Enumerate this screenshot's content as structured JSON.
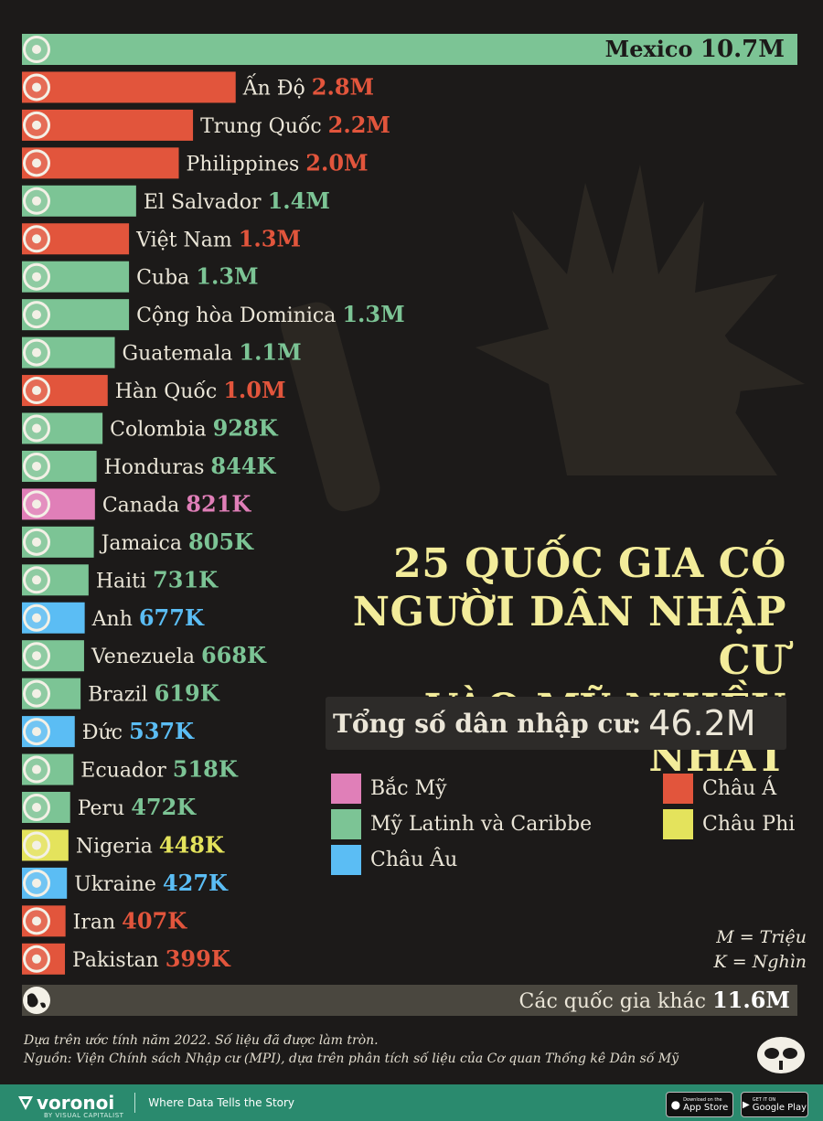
{
  "chart_data": {
    "type": "bar",
    "orientation": "horizontal",
    "categories": [
      "Mexico",
      "Ấn Độ",
      "Trung Quốc",
      "Philippines",
      "El Salvador",
      "Việt Nam",
      "Cuba",
      "Cộng hòa Dominica",
      "Guatemala",
      "Hàn Quốc",
      "Colombia",
      "Honduras",
      "Canada",
      "Jamaica",
      "Haiti",
      "Anh",
      "Venezuela",
      "Brazil",
      "Đức",
      "Ecuador",
      "Peru",
      "Nigeria",
      "Ukraine",
      "Iran",
      "Pakistan"
    ],
    "values": [
      10700000,
      2800000,
      2200000,
      2000000,
      1400000,
      1300000,
      1300000,
      1300000,
      1100000,
      1000000,
      928000,
      844000,
      821000,
      805000,
      731000,
      677000,
      668000,
      619000,
      537000,
      518000,
      472000,
      448000,
      427000,
      407000,
      399000
    ],
    "value_labels": [
      "10.7M",
      "2.8M",
      "2.2M",
      "2.0M",
      "1.4M",
      "1.3M",
      "1.3M",
      "1.3M",
      "1.1M",
      "1.0M",
      "928K",
      "844K",
      "821K",
      "805K",
      "731K",
      "677K",
      "668K",
      "619K",
      "537K",
      "518K",
      "472K",
      "448K",
      "427K",
      "407K",
      "399K"
    ],
    "regions": [
      "latam",
      "asia",
      "asia",
      "asia",
      "latam",
      "asia",
      "latam",
      "latam",
      "latam",
      "asia",
      "latam",
      "latam",
      "north_america",
      "latam",
      "latam",
      "europe",
      "latam",
      "latam",
      "europe",
      "latam",
      "latam",
      "africa",
      "europe",
      "asia",
      "asia"
    ],
    "flag_icons": [
      "mexico-flag-icon",
      "india-flag-icon",
      "china-flag-icon",
      "philippines-flag-icon",
      "el-salvador-flag-icon",
      "vietnam-flag-icon",
      "cuba-flag-icon",
      "dominican-republic-flag-icon",
      "guatemala-flag-icon",
      "south-korea-flag-icon",
      "colombia-flag-icon",
      "honduras-flag-icon",
      "canada-flag-icon",
      "jamaica-flag-icon",
      "haiti-flag-icon",
      "uk-flag-icon",
      "venezuela-flag-icon",
      "brazil-flag-icon",
      "germany-flag-icon",
      "ecuador-flag-icon",
      "peru-flag-icon",
      "nigeria-flag-icon",
      "ukraine-flag-icon",
      "iran-flag-icon",
      "pakistan-flag-icon"
    ],
    "other": {
      "label": "Các quốc gia khác",
      "value": 11600000,
      "value_label": "11.6M",
      "icon": "globe-icon"
    },
    "region_colors": {
      "north_america": "#e07fb8",
      "latam": "#7cc495",
      "europe": "#5bbdf4",
      "asia": "#e2553c",
      "africa": "#e4e35c",
      "other": "#4a473f"
    }
  },
  "title": {
    "line1": "25 QUỐC GIA CÓ",
    "line2": "NGƯỜI DÂN NHẬP CƯ",
    "line3": "VÀO MỸ NHIỀU NHẤT"
  },
  "total": {
    "label": "Tổng số dân nhập cư:",
    "value": "46.2M"
  },
  "legend": [
    {
      "key": "north_america",
      "label": "Bắc Mỹ"
    },
    {
      "key": "latam",
      "label": "Mỹ Latinh và Caribbe"
    },
    {
      "key": "europe",
      "label": "Châu Âu"
    },
    {
      "key": "asia",
      "label": "Châu Á"
    },
    {
      "key": "africa",
      "label": "Châu Phi"
    }
  ],
  "units": {
    "m": "M = Triệu",
    "k": "K = Nghìn"
  },
  "notes": {
    "line1": "Dựa trên ước tính năm 2022. Số liệu đã được làm tròn.",
    "line2": "Nguồn: Viện Chính sách Nhập cư (MPI), dựa trên phân tích số liệu của Cơ quan Thống kê Dân số Mỹ"
  },
  "footer": {
    "brand": "voronoi",
    "brand_sub": "BY VISUAL CAPITALIST",
    "tagline": "Where Data Tells the Story",
    "app_store": "App Store",
    "app_store_small": "Download on the",
    "google_play": "Google Play",
    "google_play_small": "GET IT ON"
  }
}
